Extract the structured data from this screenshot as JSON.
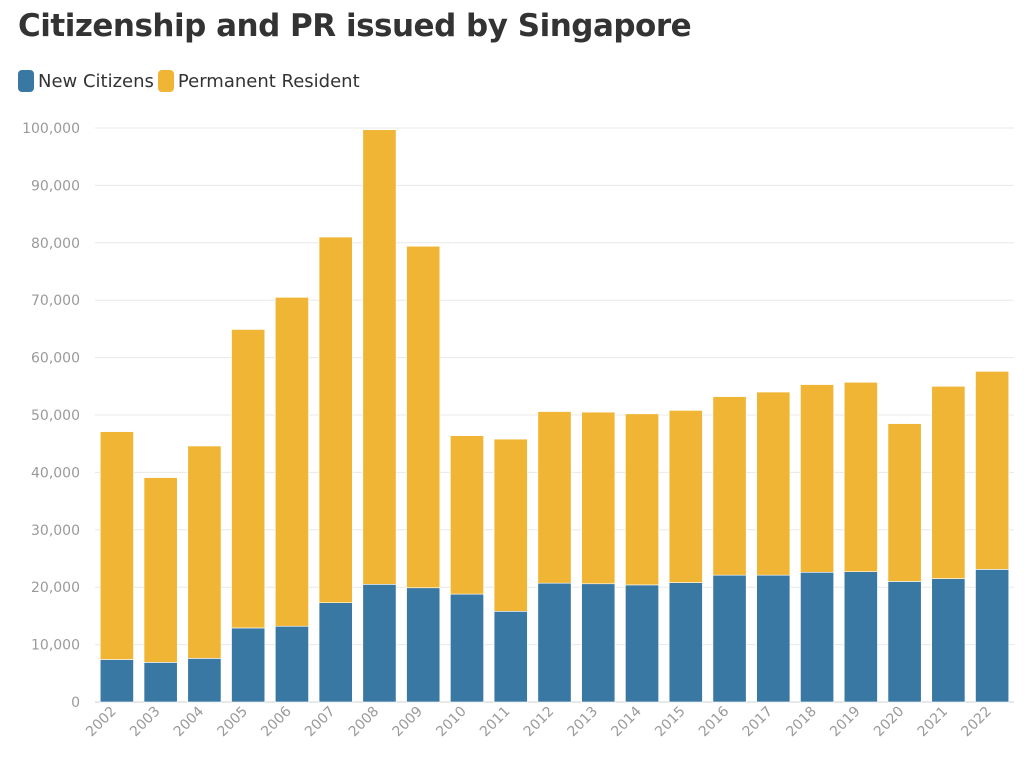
{
  "chart_data": {
    "type": "bar",
    "stacked": true,
    "title": "Citizenship and PR issued by Singapore",
    "categories": [
      "2002",
      "2003",
      "2004",
      "2005",
      "2006",
      "2007",
      "2008",
      "2009",
      "2010",
      "2011",
      "2012",
      "2013",
      "2014",
      "2015",
      "2016",
      "2017",
      "2018",
      "2019",
      "2020",
      "2021",
      "2022"
    ],
    "series": [
      {
        "name": "New Citizens",
        "color": "#3a78a4",
        "values": [
          7400,
          6900,
          7600,
          12900,
          13200,
          17300,
          20500,
          19900,
          18800,
          15800,
          20700,
          20600,
          20400,
          20800,
          22100,
          22100,
          22600,
          22700,
          21000,
          21500,
          23100
        ]
      },
      {
        "name": "Permanent Resident",
        "color": "#f0b534",
        "values": [
          39700,
          32200,
          37000,
          52000,
          57300,
          63700,
          79200,
          59500,
          27600,
          30000,
          29900,
          29900,
          29800,
          30000,
          31100,
          31900,
          32700,
          33000,
          27500,
          33500,
          34500
        ]
      }
    ],
    "ylim": [
      0,
      100000
    ],
    "yticks": [
      "0",
      "10,000",
      "20,000",
      "30,000",
      "40,000",
      "50,000",
      "60,000",
      "70,000",
      "80,000",
      "90,000",
      "100,000"
    ],
    "legend_position": "top-left",
    "grid": true
  }
}
